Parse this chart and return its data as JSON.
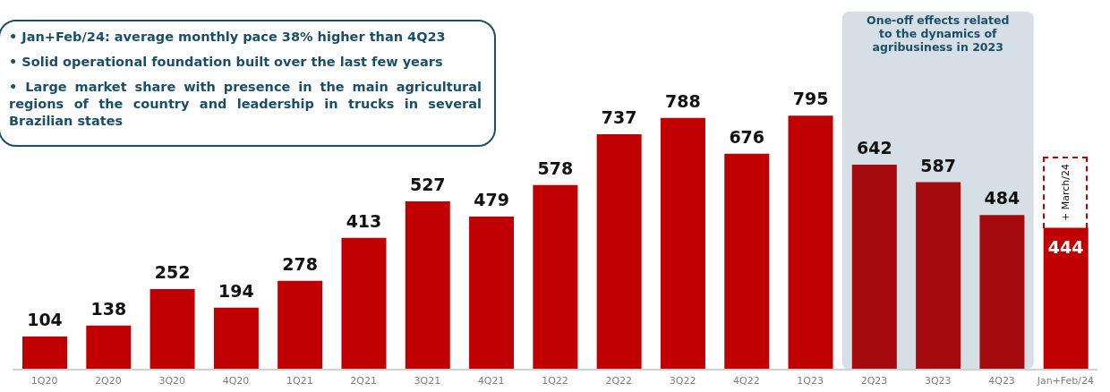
{
  "chart_data": {
    "type": "bar",
    "categories": [
      "1Q20",
      "2Q20",
      "3Q20",
      "4Q20",
      "1Q21",
      "2Q21",
      "3Q21",
      "4Q21",
      "1Q22",
      "2Q22",
      "3Q22",
      "4Q22",
      "1Q23",
      "2Q23",
      "3Q23",
      "4Q23",
      "Jan+Feb/24"
    ],
    "values": [
      104,
      138,
      252,
      194,
      278,
      413,
      527,
      479,
      578,
      737,
      788,
      676,
      795,
      642,
      587,
      484,
      444
    ],
    "colors": [
      "#c00000",
      "#c00000",
      "#c00000",
      "#c00000",
      "#c00000",
      "#c00000",
      "#c00000",
      "#c00000",
      "#c00000",
      "#c00000",
      "#c00000",
      "#c00000",
      "#c00000",
      "#a50a0f",
      "#a50a0f",
      "#a50a0f",
      "#c00000"
    ],
    "data_labels": true,
    "bands": [
      {
        "axis": "x",
        "from": "2Q23",
        "to": "4Q23",
        "label": "One-off effects related to the dynamics of agribusiness in 2023",
        "color": "#d6dfe6"
      }
    ],
    "annotations": [
      "• Jan+Feb/24: average monthly pace 38% higher than 4Q23",
      "• Solid operational foundation built over the last few years",
      "• Large market share with presence in the main agricultural regions of the country and leadership in trucks in several Brazilian states",
      "+ March/24"
    ]
  }
}
